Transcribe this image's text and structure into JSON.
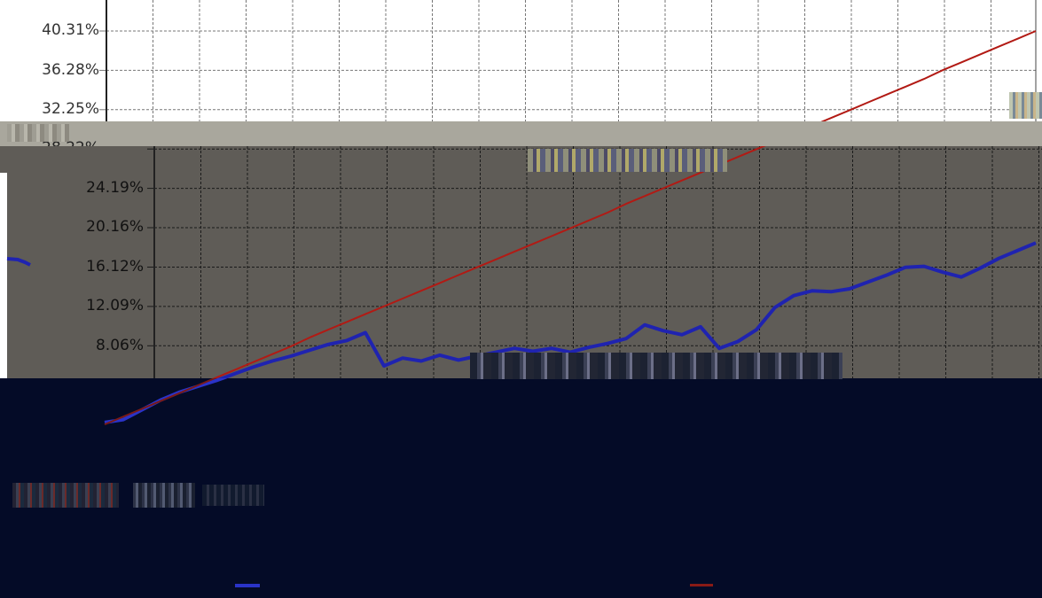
{
  "chart_data": {
    "type": "line",
    "y_tick_labels": [
      "40.31%",
      "36.28%",
      "32.25%",
      "28.22%",
      "24.19%",
      "20.16%",
      "16.12%",
      "12.09%",
      "8.06%"
    ],
    "y_ticks": [
      40.31,
      36.28,
      32.25,
      28.22,
      24.19,
      20.16,
      16.12,
      12.09,
      8.06
    ],
    "ylim": [
      0,
      42.0
    ],
    "grid": true,
    "x": [
      0,
      0.02,
      0.04,
      0.06,
      0.08,
      0.1,
      0.12,
      0.14,
      0.16,
      0.18,
      0.2,
      0.22,
      0.24,
      0.26,
      0.28,
      0.3,
      0.32,
      0.34,
      0.36,
      0.38,
      0.4,
      0.42,
      0.44,
      0.46,
      0.48,
      0.5,
      0.52,
      0.54,
      0.56,
      0.58,
      0.6,
      0.62,
      0.64,
      0.66,
      0.68,
      0.7,
      0.72,
      0.74,
      0.76,
      0.78,
      0.8,
      0.82,
      0.84,
      0.86,
      0.88,
      0.9,
      0.92,
      0.94,
      0.96,
      0.98,
      1.0
    ],
    "series": [
      {
        "color": "#1f23b0",
        "values": [
          0.2,
          0.5,
          1.5,
          2.5,
          3.3,
          3.9,
          4.5,
          5.2,
          5.9,
          6.5,
          7.0,
          7.6,
          8.2,
          8.6,
          9.4,
          6.0,
          6.8,
          6.5,
          7.1,
          6.6,
          7.0,
          7.4,
          7.8,
          7.5,
          7.8,
          7.4,
          7.9,
          8.3,
          8.8,
          10.2,
          9.6,
          9.2,
          10.0,
          7.8,
          8.5,
          9.7,
          12.0,
          13.2,
          13.7,
          13.6,
          13.9,
          14.6,
          15.3,
          16.1,
          16.2,
          15.6,
          15.1,
          16.0,
          17.0,
          17.8,
          18.6
        ]
      },
      {
        "color": "#b21a14",
        "values": [
          0.0,
          0.8,
          1.6,
          2.4,
          3.2,
          4.0,
          4.8,
          5.6,
          6.4,
          7.2,
          8.0,
          8.9,
          9.7,
          10.5,
          11.3,
          12.1,
          12.9,
          13.7,
          14.5,
          15.3,
          16.1,
          16.9,
          17.7,
          18.5,
          19.3,
          20.1,
          20.9,
          21.7,
          22.6,
          23.4,
          24.2,
          25.0,
          25.8,
          26.6,
          27.4,
          28.2,
          29.0,
          29.8,
          30.6,
          31.4,
          32.2,
          33.0,
          33.8,
          34.6,
          35.4,
          36.3,
          37.1,
          37.9,
          38.7,
          39.5,
          40.31
        ]
      }
    ]
  },
  "colors": {
    "top_background": "#ffffff",
    "band": "#a9a79d",
    "mid_background": "#5f5c57",
    "bottom_background": "#040b27",
    "blue_series": "#1f23b0",
    "red_series": "#b21a14"
  }
}
